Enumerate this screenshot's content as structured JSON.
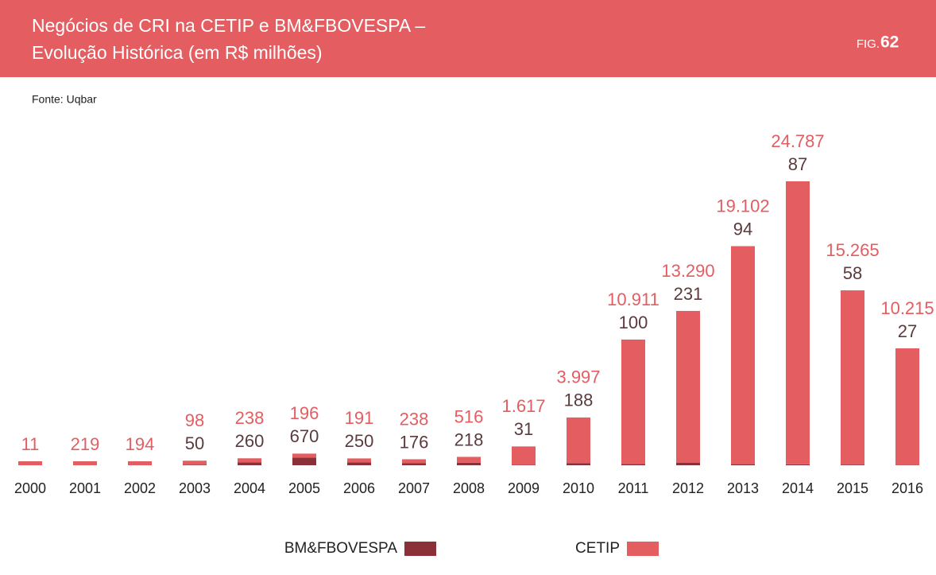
{
  "header": {
    "title_lines": [
      "Negócios de CRI na CETIP e BM&FBOVESPA –",
      "Evolução Histórica  (em R$ milhões)"
    ],
    "fig_prefix": "FIG.",
    "fig_number": "62"
  },
  "source": "Fonte: Uqbar",
  "chart_data": {
    "type": "stacked-bar",
    "categories": [
      "2000",
      "2001",
      "2002",
      "2003",
      "2004",
      "2005",
      "2006",
      "2007",
      "2008",
      "2009",
      "2010",
      "2011",
      "2012",
      "2013",
      "2014",
      "2015",
      "2016"
    ],
    "series": [
      {
        "name": "BM&FBOVESPA",
        "color": "#8b3038",
        "label_color": "#5b3b3d",
        "values": [
          null,
          null,
          null,
          50,
          260,
          670,
          250,
          176,
          218,
          31,
          188,
          100,
          231,
          94,
          87,
          58,
          27
        ]
      },
      {
        "name": "CETIP",
        "color": "#e35d61",
        "label_color": "#e35d61",
        "values": [
          11,
          219,
          194,
          98,
          238,
          196,
          191,
          238,
          516,
          1617,
          3997,
          10911,
          13290,
          19102,
          24787,
          15265,
          10215
        ],
        "value_labels": [
          "11",
          "219",
          "194",
          "98",
          "238",
          "196",
          "191",
          "238",
          "516",
          "1.617",
          "3.997",
          "10.911",
          "13.290",
          "19.102",
          "24.787",
          "15.265",
          "10.215"
        ]
      }
    ]
  }
}
